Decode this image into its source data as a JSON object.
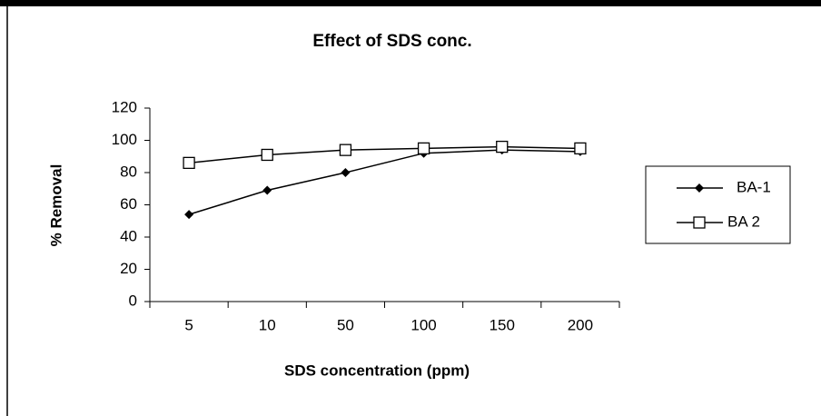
{
  "chart_data": {
    "type": "line",
    "title": "Effect of SDS conc.",
    "xlabel": "SDS concentration (ppm)",
    "ylabel": "% Removal",
    "categories": [
      "5",
      "10",
      "50",
      "100",
      "150",
      "200"
    ],
    "series": [
      {
        "name": "BA-1",
        "color": "#000000",
        "marker": "diamond",
        "values": [
          54,
          69,
          80,
          92,
          94,
          93
        ]
      },
      {
        "name": "BA 2",
        "color": "#000000",
        "marker": "square",
        "values": [
          86,
          91,
          94,
          95,
          96,
          95
        ]
      }
    ],
    "ylim": [
      0,
      120
    ],
    "yticks": [
      0,
      20,
      40,
      60,
      80,
      100,
      120
    ],
    "grid": false,
    "legend": "right"
  }
}
